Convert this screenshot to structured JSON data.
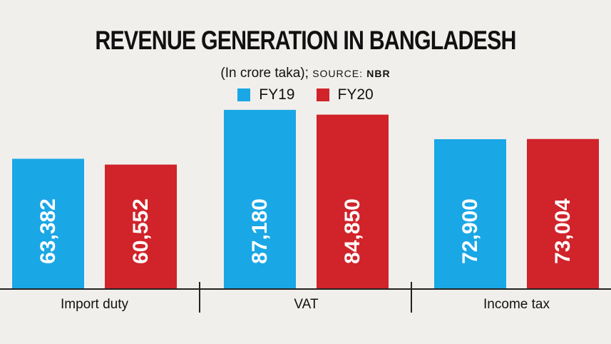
{
  "chart_data": {
    "type": "bar",
    "title": "REVENUE GENERATION IN BANGLADESH",
    "subtitle": "(In crore taka);",
    "source_label": "SOURCE:",
    "source": "NBR",
    "categories": [
      "Import duty",
      "VAT",
      "Income tax"
    ],
    "series": [
      {
        "name": "FY19",
        "color": "#1aa7e6",
        "values": [
          63382,
          87180,
          72900
        ],
        "labels": [
          "63,382",
          "87,180",
          "72,900"
        ]
      },
      {
        "name": "FY20",
        "color": "#d1232a",
        "values": [
          60552,
          84850,
          73004
        ],
        "labels": [
          "60,552",
          "84,850",
          "73,004"
        ]
      }
    ],
    "ylim": [
      0,
      100000
    ],
    "legend": "top-center",
    "grid": false
  }
}
